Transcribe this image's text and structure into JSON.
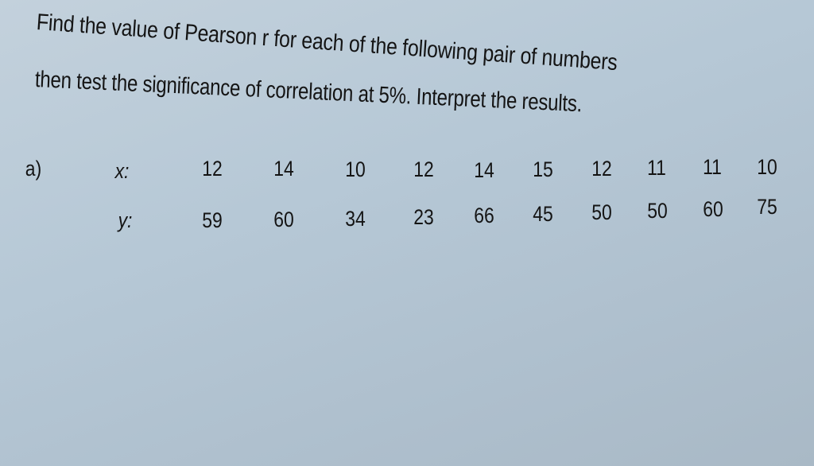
{
  "problem": {
    "line1": "Find the value of Pearson r for each of the following pair of numbers",
    "line2": "then test the significance of correlation at 5%. Interpret the results."
  },
  "table": {
    "part_label": "a)",
    "x_label": "x:",
    "y_label": "y:",
    "x": [
      "12",
      "14",
      "10",
      "12",
      "14",
      "15",
      "12",
      "11",
      "11",
      "10"
    ],
    "y": [
      "59",
      "60",
      "34",
      "23",
      "66",
      "45",
      "50",
      "50",
      "60",
      "75"
    ]
  },
  "colors": {
    "paper": "#b9cad7",
    "ink": "#141414"
  }
}
